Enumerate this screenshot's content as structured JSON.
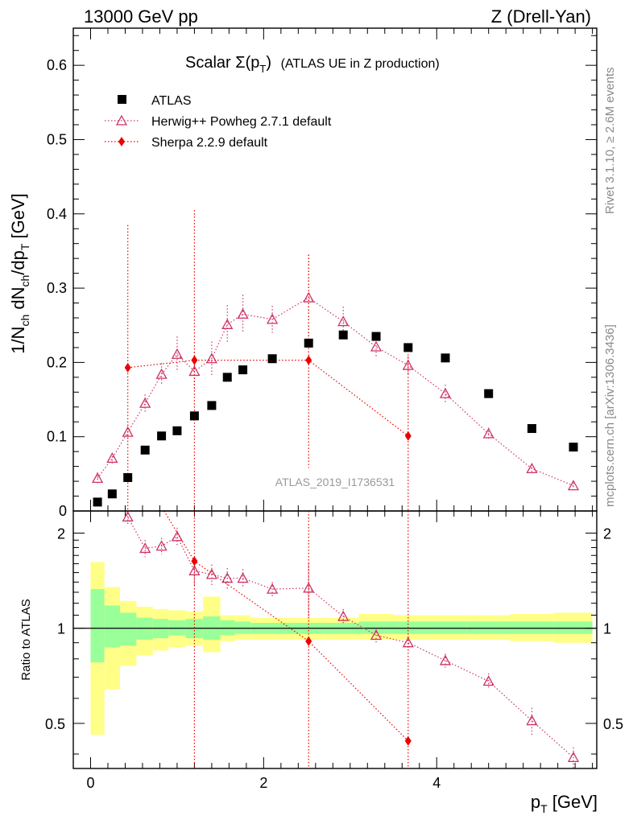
{
  "header": {
    "left": "13000 GeV pp",
    "right": "Z (Drell-Yan)"
  },
  "side_labels": {
    "rivet": "Rivet 3.1.10, ≥ 2.6M events",
    "mcplots": "mcplots.cern.ch [arXiv:1306.3436]"
  },
  "watermark": "ATLAS_2019_I1736531",
  "colors": {
    "atlas": "#000000",
    "herwig": "#cc3366",
    "sherpa": "#ee0000",
    "band_inner": "#99ff99",
    "band_outer": "#ffff88"
  },
  "chart_data": [
    {
      "type": "scatter",
      "title_main": "Scalar Σ(p",
      "title_sub": "T",
      "title_end": ")",
      "title_extra": "(ATLAS UE in Z production)",
      "ylabel": "1/N_ch dN_ch/dp_T [GeV]",
      "xlabel": "p_T [GeV]",
      "xlim": [
        -0.2,
        5.85
      ],
      "ylim": [
        0,
        0.65
      ],
      "yticks": [
        0,
        0.1,
        0.2,
        0.3,
        0.4,
        0.5,
        0.6
      ],
      "ytick_labels": [
        "0",
        "0.1",
        "0.2",
        "0.3",
        "0.4",
        "0.5",
        "0.6"
      ],
      "legend_position": "top-left",
      "series": [
        {
          "name": "ATLAS",
          "marker": "square",
          "x": [
            0.08,
            0.25,
            0.43,
            0.63,
            0.82,
            1.0,
            1.2,
            1.4,
            1.58,
            1.76,
            2.1,
            2.52,
            2.92,
            3.3,
            3.67,
            4.1,
            4.6,
            5.1,
            5.58
          ],
          "y": [
            0.012,
            0.023,
            0.045,
            0.082,
            0.101,
            0.108,
            0.128,
            0.142,
            0.18,
            0.19,
            0.205,
            0.226,
            0.237,
            0.235,
            0.22,
            0.206,
            0.158,
            0.111,
            0.086
          ]
        },
        {
          "name": "Herwig++ Powheg 2.7.1 default",
          "marker": "triangle-open",
          "x": [
            0.08,
            0.25,
            0.43,
            0.63,
            0.82,
            1.0,
            1.2,
            1.4,
            1.58,
            1.76,
            2.1,
            2.52,
            2.92,
            3.3,
            3.67,
            4.1,
            4.6,
            5.1,
            5.58
          ],
          "y": [
            0.044,
            0.071,
            0.106,
            0.145,
            0.184,
            0.211,
            0.188,
            0.205,
            0.251,
            0.265,
            0.258,
            0.287,
            0.255,
            0.221,
            0.196,
            0.158,
            0.104,
            0.057,
            0.034
          ],
          "yerr": [
            0.008,
            0.007,
            0.01,
            0.012,
            0.015,
            0.024,
            0.026,
            0.023,
            0.026,
            0.026,
            0.018,
            0.058,
            0.02,
            0.015,
            0.012,
            0.012,
            0.008,
            0.006,
            0.004
          ]
        },
        {
          "name": "Sherpa 2.2.9 default",
          "marker": "diamond",
          "x": [
            0.43,
            1.2,
            2.52,
            3.67
          ],
          "y": [
            0.193,
            0.203,
            0.203,
            0.101
          ],
          "yerr_low": [
            0.193,
            0.203,
            0.145,
            0.101
          ],
          "yerr_high": [
            0.192,
            0.202,
            0.142,
            0.11
          ]
        }
      ]
    },
    {
      "type": "scatter",
      "ylabel": "Ratio to ATLAS",
      "xlabel": "p_T [GeV]",
      "xlim": [
        -0.2,
        5.85
      ],
      "ylim": [
        0.36,
        2.35
      ],
      "log_scale_y": true,
      "yticks": [
        0.5,
        1,
        2
      ],
      "ytick_labels": [
        "0.5",
        "1",
        "2"
      ],
      "xticks": [
        0,
        2,
        4
      ],
      "xtick_labels": [
        "0",
        "2",
        "4"
      ],
      "band_edges": [
        0.0,
        0.16,
        0.34,
        0.53,
        0.72,
        0.9,
        1.1,
        1.3,
        1.5,
        1.67,
        1.85,
        2.35,
        2.7,
        3.1,
        3.5,
        3.85,
        4.35,
        4.85,
        5.35,
        5.8
      ],
      "band_inner_low": [
        0.78,
        0.87,
        0.88,
        0.92,
        0.93,
        0.95,
        0.93,
        0.92,
        0.95,
        0.96,
        0.96,
        0.96,
        0.96,
        0.96,
        0.96,
        0.96,
        0.96,
        0.96,
        0.96
      ],
      "band_inner_high": [
        1.33,
        1.18,
        1.12,
        1.08,
        1.07,
        1.06,
        1.07,
        1.09,
        1.06,
        1.05,
        1.04,
        1.04,
        1.04,
        1.05,
        1.05,
        1.05,
        1.05,
        1.05,
        1.05
      ],
      "band_outer_low": [
        0.46,
        0.64,
        0.76,
        0.82,
        0.85,
        0.87,
        0.88,
        0.84,
        0.91,
        0.92,
        0.92,
        0.92,
        0.92,
        0.92,
        0.92,
        0.92,
        0.92,
        0.91,
        0.9
      ],
      "band_outer_high": [
        1.62,
        1.35,
        1.22,
        1.17,
        1.15,
        1.14,
        1.13,
        1.26,
        1.1,
        1.1,
        1.08,
        1.08,
        1.08,
        1.11,
        1.1,
        1.1,
        1.1,
        1.11,
        1.12
      ],
      "series": [
        {
          "name": "Herwig++ Powheg 2.7.1 default",
          "x": [
            0.43,
            0.63,
            0.82,
            1.0,
            1.2,
            1.4,
            1.58,
            1.76,
            2.1,
            2.52,
            2.92,
            3.3,
            3.67,
            4.1,
            4.6,
            5.1,
            5.58
          ],
          "y": [
            2.25,
            1.79,
            1.82,
            1.95,
            1.52,
            1.48,
            1.44,
            1.44,
            1.33,
            1.34,
            1.09,
            0.95,
            0.9,
            0.79,
            0.68,
            0.51,
            0.39
          ],
          "yerr": [
            0.12,
            0.11,
            0.11,
            0.13,
            0.15,
            0.11,
            0.11,
            0.1,
            0.07,
            0.26,
            0.06,
            0.05,
            0.04,
            0.04,
            0.04,
            0.05,
            0.03
          ]
        },
        {
          "name": "Sherpa 2.2.9 default",
          "x": [
            1.2,
            2.52,
            3.67
          ],
          "y": [
            1.63,
            0.91,
            0.44
          ],
          "line_start_x": 0.85
        }
      ]
    }
  ]
}
